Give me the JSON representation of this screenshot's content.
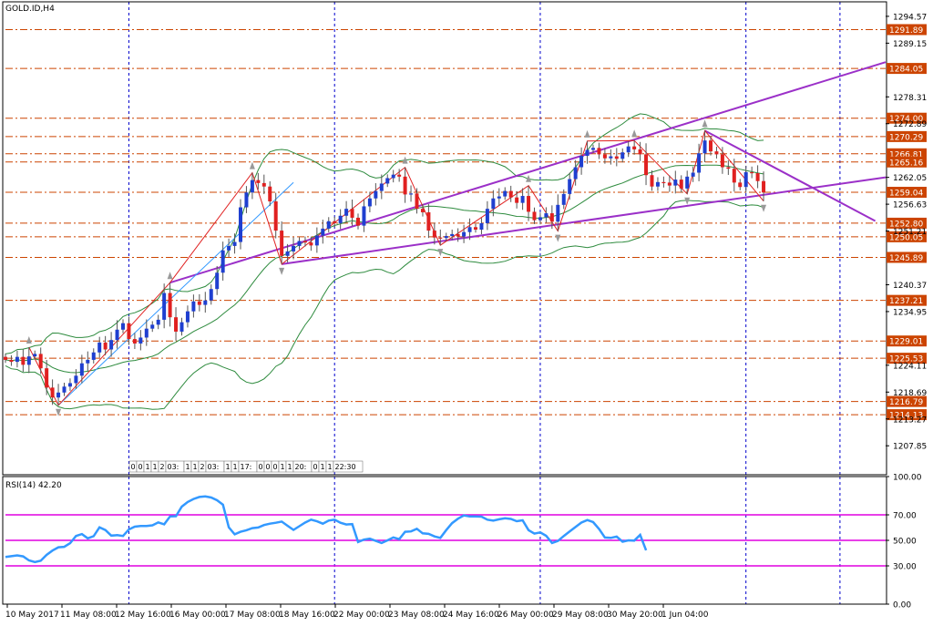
{
  "colors": {
    "background": "#ffffff",
    "frame": "#000000",
    "grid": "#0000cc",
    "hline": "#cc4400",
    "price_label_bg": "#cc4400",
    "price_label_text": "#ffffff",
    "bull_candle": "#1f3fd0",
    "bear_candle": "#e02020",
    "wick": "#555555",
    "bollinger": "#2e8b3e",
    "zigzag": "#e02020",
    "channel": "#9b30c8",
    "trend_thin": "#3399ff",
    "rsi_line": "#3399ff",
    "rsi_levels": "#e000e0",
    "fractal": "#999999"
  },
  "chart_data": [
    {
      "type": "candlestick",
      "title": "GOLD.ID,H4",
      "y_range": [
        1202.0,
        1297.5
      ],
      "right_axis_ticks": [
        "1294.57",
        "1289.15",
        "1278.31",
        "1272.89",
        "1262.05",
        "1256.63",
        "1251.21",
        "1240.37",
        "1234.95",
        "1224.11",
        "1218.69",
        "1213.27",
        "1207.85"
      ],
      "price_levels": [
        {
          "value": 1291.89,
          "label": "1291.89"
        },
        {
          "value": 1284.05,
          "label": "1284.05"
        },
        {
          "value": 1274.0,
          "label": "1274.00"
        },
        {
          "value": 1270.29,
          "label": "1270.29"
        },
        {
          "value": 1266.81,
          "label": "1266.81"
        },
        {
          "value": 1265.16,
          "label": "1265.16"
        },
        {
          "value": 1259.04,
          "label": "1259.04"
        },
        {
          "value": 1252.8,
          "label": "1252.80"
        },
        {
          "value": 1250.05,
          "label": "1250.05"
        },
        {
          "value": 1245.89,
          "label": "1245.89"
        },
        {
          "value": 1237.21,
          "label": "1237.21"
        },
        {
          "value": 1229.01,
          "label": "1229.01"
        },
        {
          "value": 1225.53,
          "label": "1225.53"
        },
        {
          "value": 1216.79,
          "label": "1216.79"
        },
        {
          "value": 1214.13,
          "label": "1214.13"
        }
      ],
      "candle_closes": [
        1225.2,
        1224.8,
        1225.8,
        1224.2,
        1225.9,
        1226.4,
        1223.5,
        1219.6,
        1217.6,
        1218.6,
        1219.8,
        1220.5,
        1222.0,
        1224.5,
        1225.2,
        1226.7,
        1228.7,
        1227.3,
        1229.2,
        1231.3,
        1232.6,
        1229.4,
        1228.5,
        1229.7,
        1231.5,
        1232.3,
        1233.3,
        1238.7,
        1233.8,
        1230.9,
        1232.8,
        1235.0,
        1237.0,
        1236.3,
        1237.2,
        1239.5,
        1242.8,
        1247.3,
        1248.2,
        1249.0,
        1256.0,
        1259.0,
        1261.5,
        1260.9,
        1260.2,
        1257.2,
        1251.3,
        1246.2,
        1247.1,
        1248.2,
        1249.2,
        1248.9,
        1248.3,
        1250.3,
        1251.7,
        1253.2,
        1252.8,
        1254.3,
        1255.7,
        1253.9,
        1252.3,
        1256.2,
        1257.8,
        1259.3,
        1260.8,
        1261.9,
        1262.6,
        1262.2,
        1258.6,
        1258.8,
        1255.7,
        1255.0,
        1251.3,
        1249.9,
        1249.8,
        1250.2,
        1250.6,
        1250.1,
        1251.0,
        1252.0,
        1251.5,
        1252.8,
        1255.7,
        1257.8,
        1258.2,
        1259.3,
        1258.0,
        1256.9,
        1258.3,
        1255.1,
        1253.4,
        1254.0,
        1254.8,
        1253.1,
        1256.5,
        1258.7,
        1261.7,
        1264.1,
        1266.4,
        1267.6,
        1268.0,
        1266.7,
        1265.9,
        1266.3,
        1265.8,
        1267.1,
        1268.3,
        1267.7,
        1266.7,
        1262.5,
        1260.2,
        1261.1,
        1261.0,
        1260.4,
        1261.6,
        1259.8,
        1262.2,
        1263.0,
        1266.9,
        1269.5,
        1267.3,
        1266.7,
        1264.1,
        1263.8,
        1261.0,
        1260.1,
        1263.1,
        1262.9,
        1261.3,
        1259.0
      ],
      "bollinger": {
        "period": 20,
        "deviation": 2
      },
      "x_labels": [
        "10 May 2017",
        "11 May 08:00",
        "12 May 16:00",
        "16 May 00:00",
        "17 May 08:00",
        "18 May 16:00",
        "22 May 00:00",
        "23 May 08:00",
        "24 May 16:00",
        "26 May 00:00",
        "29 May 08:00",
        "30 May 20:00",
        "1 Jun 04:00"
      ],
      "time_grid_labels": [
        "0",
        "0",
        "1",
        "1",
        "2",
        "03:",
        "1",
        "1",
        "2",
        "03:",
        "1",
        "1",
        "17:",
        "0",
        "0",
        "0",
        "1",
        "1",
        "20:",
        "0",
        "1",
        "1",
        "22:30"
      ]
    },
    {
      "type": "line",
      "title": "RSI(14) 42.20",
      "y_range": [
        0,
        100
      ],
      "y_ticks": [
        "100.00",
        "70.00",
        "50.00",
        "30.00",
        "0.00"
      ],
      "levels": [
        70,
        50,
        30
      ],
      "values": [
        37.0,
        37.6,
        38.2,
        37.4,
        34.3,
        33.0,
        34.0,
        38.6,
        42.0,
        44.6,
        44.9,
        47.8,
        53.4,
        54.9,
        51.6,
        53.3,
        60.2,
        58.1,
        53.7,
        54.1,
        53.4,
        58.6,
        60.7,
        61.2,
        61.3,
        61.8,
        64.1,
        62.6,
        68.7,
        68.9,
        76.4,
        80.1,
        82.4,
        84.0,
        84.4,
        83.6,
        81.4,
        77.9,
        60.2,
        54.7,
        56.7,
        57.9,
        59.6,
        60.1,
        62.0,
        63.1,
        63.8,
        64.7,
        61.4,
        58.2,
        61.1,
        63.9,
        66.2,
        64.9,
        63.1,
        65.5,
        66.2,
        63.8,
        62.4,
        62.7,
        48.7,
        50.6,
        51.3,
        49.6,
        47.9,
        50.0,
        52.3,
        50.9,
        56.7,
        57.0,
        59.1,
        55.5,
        55.1,
        53.1,
        51.9,
        58.1,
        63.5,
        67.0,
        69.5,
        68.7,
        68.8,
        68.6,
        66.2,
        65.5,
        66.5,
        67.3,
        66.8,
        65.0,
        65.7,
        58.0,
        55.3,
        56.2,
        53.6,
        47.9,
        49.5,
        53.4,
        56.9,
        60.4,
        63.9,
        65.9,
        64.3,
        58.9,
        52.2,
        51.9,
        52.9,
        48.9,
        50.0,
        49.8,
        54.3,
        42.2
      ]
    }
  ]
}
